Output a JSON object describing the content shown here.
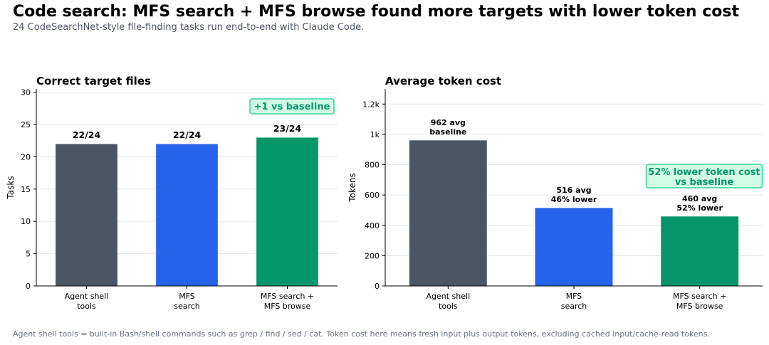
{
  "title": "Code search: MFS search + MFS browse found more targets with lower token cost",
  "subtitle": "24 CodeSearchNet-style file-finding tasks run end-to-end with Claude Code.",
  "footnote": "Agent shell tools = built-in Bash/shell commands such as grep / find / sed / cat. Token cost here means fresh input plus output tokens, excluding cached input/cache-read tokens.",
  "colors": {
    "agent_shell": "#4b5563",
    "mfs_search": "#2563eb",
    "mfs_combo": "#059669",
    "callout_fill": "#d1fae5",
    "callout_border": "#34d399",
    "callout_text": "#059669",
    "grid": "#e5e7eb"
  },
  "chart_data": [
    {
      "type": "bar",
      "title": "Correct target files",
      "xlabel": "",
      "ylabel": "Tasks",
      "categories": [
        [
          "Agent shell",
          "tools"
        ],
        [
          "MFS",
          "search"
        ],
        [
          "MFS search +",
          "MFS browse"
        ]
      ],
      "values": [
        22,
        22,
        23
      ],
      "bar_labels": [
        [
          "22/24"
        ],
        [
          "22/24"
        ],
        [
          "23/24"
        ]
      ],
      "ylim": [
        0,
        30.5
      ],
      "yticks": [
        0,
        5,
        10,
        15,
        20,
        25,
        30
      ],
      "ytick_labels": [
        "0",
        "5",
        "10",
        "15",
        "20",
        "25",
        "30"
      ],
      "grid": true,
      "annotation": {
        "lines": [
          "+1 vs baseline"
        ],
        "bar_index": 2
      }
    },
    {
      "type": "bar",
      "title": "Average token cost",
      "xlabel": "",
      "ylabel": "Tokens",
      "categories": [
        [
          "Agent shell",
          "tools"
        ],
        [
          "MFS",
          "search"
        ],
        [
          "MFS search +",
          "MFS browse"
        ]
      ],
      "values": [
        962,
        516,
        460
      ],
      "bar_labels": [
        [
          "962 avg",
          "baseline"
        ],
        [
          "516 avg",
          "46% lower"
        ],
        [
          "460 avg",
          "52% lower"
        ]
      ],
      "ylim": [
        0,
        1300
      ],
      "yticks": [
        0,
        200,
        400,
        600,
        800,
        1000,
        1200
      ],
      "ytick_labels": [
        "0",
        "200",
        "400",
        "600",
        "800",
        "1k",
        "1.2k"
      ],
      "grid": true,
      "annotation": {
        "lines": [
          "52% lower token cost",
          "vs baseline"
        ],
        "bar_index": 2
      }
    }
  ]
}
